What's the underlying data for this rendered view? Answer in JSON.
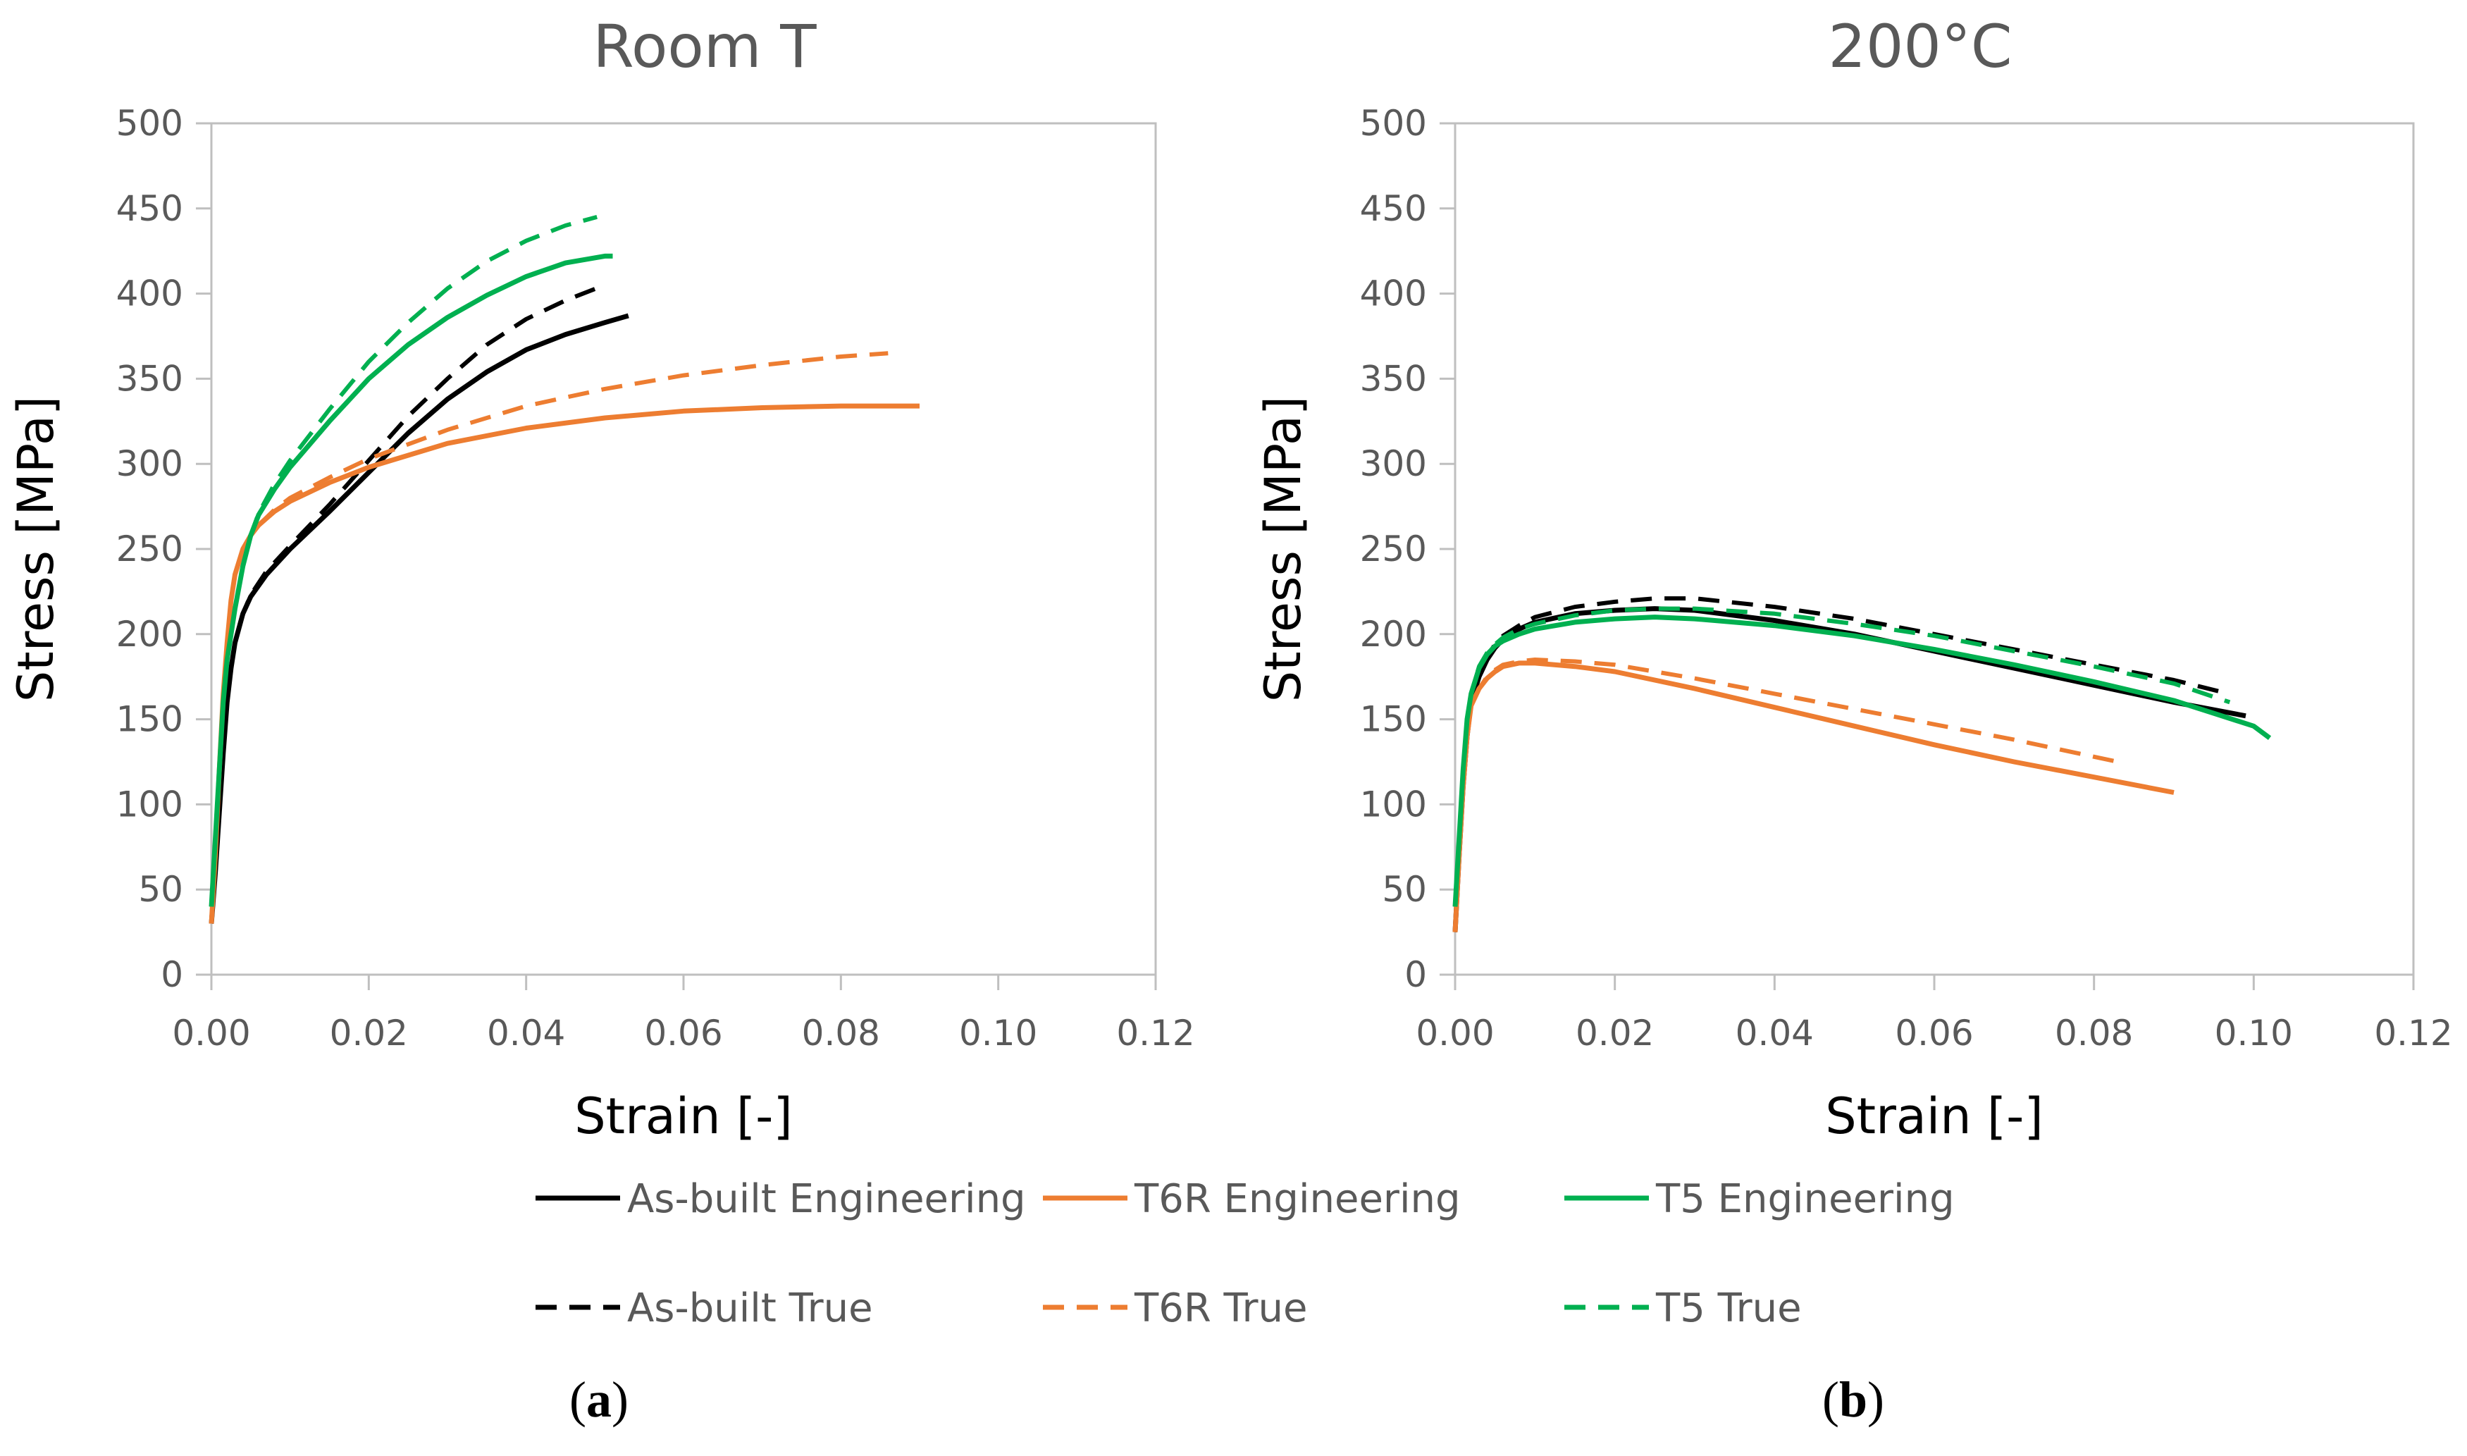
{
  "chart_data": [
    {
      "type": "line",
      "title": "Room T",
      "xlabel": "Strain [-]",
      "ylabel": "Stress [MPa]",
      "xlim": [
        0,
        0.12
      ],
      "ylim": [
        0,
        500
      ],
      "xticks": [
        0,
        0.02,
        0.04,
        0.06,
        0.08,
        0.1,
        0.12
      ],
      "xtick_labels": [
        "0.00",
        "0.02",
        "0.04",
        "0.06",
        "0.08",
        "0.10",
        "0.12"
      ],
      "yticks": [
        0,
        50,
        100,
        150,
        200,
        250,
        300,
        350,
        400,
        450,
        500
      ],
      "ytick_labels": [
        "0",
        "50",
        "100",
        "150",
        "200",
        "250",
        "300",
        "350",
        "400",
        "450",
        "500"
      ],
      "caption_letter": "a",
      "series": [
        {
          "key": "asbuilt_eng",
          "x": [
            0,
            0.0005,
            0.001,
            0.0015,
            0.002,
            0.0025,
            0.003,
            0.004,
            0.005,
            0.007,
            0.01,
            0.015,
            0.02,
            0.025,
            0.03,
            0.035,
            0.04,
            0.045,
            0.05,
            0.053
          ],
          "y": [
            30,
            60,
            95,
            130,
            160,
            180,
            195,
            212,
            222,
            235,
            250,
            272,
            295,
            318,
            338,
            354,
            367,
            376,
            383,
            387
          ]
        },
        {
          "key": "asbuilt_true",
          "x": [
            0,
            0.0005,
            0.001,
            0.0015,
            0.002,
            0.0025,
            0.003,
            0.004,
            0.005,
            0.007,
            0.01,
            0.015,
            0.02,
            0.025,
            0.03,
            0.035,
            0.04,
            0.045,
            0.05
          ],
          "y": [
            30,
            60,
            95,
            130,
            160,
            180,
            195,
            212,
            223,
            237,
            252,
            276,
            302,
            328,
            350,
            370,
            385,
            396,
            405
          ]
        },
        {
          "key": "t6r_eng",
          "x": [
            0,
            0.0005,
            0.001,
            0.0015,
            0.002,
            0.0025,
            0.003,
            0.004,
            0.005,
            0.006,
            0.008,
            0.01,
            0.015,
            0.02,
            0.03,
            0.04,
            0.05,
            0.06,
            0.07,
            0.08,
            0.09
          ],
          "y": [
            30,
            70,
            120,
            165,
            195,
            220,
            235,
            250,
            258,
            264,
            272,
            278,
            289,
            298,
            312,
            321,
            327,
            331,
            333,
            334,
            334
          ]
        },
        {
          "key": "t6r_true",
          "x": [
            0,
            0.0005,
            0.001,
            0.0015,
            0.002,
            0.0025,
            0.003,
            0.004,
            0.005,
            0.006,
            0.008,
            0.01,
            0.015,
            0.02,
            0.03,
            0.04,
            0.05,
            0.06,
            0.07,
            0.08,
            0.086
          ],
          "y": [
            30,
            70,
            120,
            165,
            195,
            220,
            235,
            250,
            258,
            264,
            273,
            280,
            292,
            303,
            320,
            334,
            344,
            352,
            358,
            363,
            365
          ]
        },
        {
          "key": "t5_eng",
          "x": [
            0,
            0.0005,
            0.001,
            0.0015,
            0.002,
            0.003,
            0.004,
            0.005,
            0.006,
            0.008,
            0.01,
            0.015,
            0.02,
            0.025,
            0.03,
            0.035,
            0.04,
            0.045,
            0.05,
            0.051
          ],
          "y": [
            40,
            80,
            120,
            160,
            185,
            215,
            240,
            258,
            270,
            285,
            298,
            325,
            350,
            370,
            386,
            399,
            410,
            418,
            422,
            422
          ]
        },
        {
          "key": "t5_true",
          "x": [
            0,
            0.0005,
            0.001,
            0.0015,
            0.002,
            0.003,
            0.004,
            0.005,
            0.006,
            0.008,
            0.01,
            0.015,
            0.02,
            0.025,
            0.03,
            0.035,
            0.04,
            0.045,
            0.049
          ],
          "y": [
            40,
            80,
            120,
            160,
            185,
            215,
            240,
            258,
            271,
            288,
            302,
            332,
            360,
            383,
            403,
            419,
            431,
            440,
            445
          ]
        }
      ]
    },
    {
      "type": "line",
      "title": "200°C",
      "xlabel": "Strain [-]",
      "ylabel": "Stress [MPa]",
      "xlim": [
        0,
        0.12
      ],
      "ylim": [
        0,
        500
      ],
      "xticks": [
        0,
        0.02,
        0.04,
        0.06,
        0.08,
        0.1,
        0.12
      ],
      "xtick_labels": [
        "0.00",
        "0.02",
        "0.04",
        "0.06",
        "0.08",
        "0.10",
        "0.12"
      ],
      "yticks": [
        0,
        50,
        100,
        150,
        200,
        250,
        300,
        350,
        400,
        450,
        500
      ],
      "ytick_labels": [
        "0",
        "50",
        "100",
        "150",
        "200",
        "250",
        "300",
        "350",
        "400",
        "450",
        "500"
      ],
      "caption_letter": "b",
      "series": [
        {
          "key": "asbuilt_eng",
          "x": [
            0,
            0.0005,
            0.001,
            0.0015,
            0.002,
            0.003,
            0.004,
            0.005,
            0.006,
            0.008,
            0.01,
            0.015,
            0.02,
            0.025,
            0.03,
            0.04,
            0.05,
            0.06,
            0.07,
            0.08,
            0.09,
            0.099
          ],
          "y": [
            25,
            70,
            110,
            140,
            160,
            175,
            185,
            192,
            197,
            203,
            207,
            212,
            214,
            215,
            214,
            208,
            200,
            190,
            180,
            170,
            160,
            152
          ]
        },
        {
          "key": "asbuilt_true",
          "x": [
            0,
            0.0005,
            0.001,
            0.0015,
            0.002,
            0.003,
            0.004,
            0.005,
            0.006,
            0.008,
            0.01,
            0.015,
            0.02,
            0.025,
            0.03,
            0.04,
            0.05,
            0.06,
            0.07,
            0.08,
            0.09,
            0.096
          ],
          "y": [
            25,
            70,
            110,
            140,
            160,
            176,
            187,
            194,
            199,
            205,
            210,
            216,
            219,
            221,
            221,
            216,
            209,
            200,
            191,
            182,
            173,
            166
          ]
        },
        {
          "key": "t6r_eng",
          "x": [
            0,
            0.0005,
            0.001,
            0.0015,
            0.002,
            0.003,
            0.004,
            0.005,
            0.006,
            0.008,
            0.01,
            0.015,
            0.02,
            0.03,
            0.04,
            0.05,
            0.06,
            0.07,
            0.08,
            0.09
          ],
          "y": [
            25,
            70,
            110,
            140,
            158,
            168,
            174,
            178,
            181,
            183,
            183,
            181,
            178,
            168,
            157,
            146,
            135,
            125,
            116,
            107
          ]
        },
        {
          "key": "t6r_true",
          "x": [
            0,
            0.0005,
            0.001,
            0.0015,
            0.002,
            0.003,
            0.004,
            0.005,
            0.006,
            0.008,
            0.01,
            0.015,
            0.02,
            0.03,
            0.04,
            0.05,
            0.06,
            0.07,
            0.08,
            0.084
          ],
          "y": [
            25,
            70,
            110,
            140,
            158,
            168,
            175,
            179,
            182,
            184,
            185,
            184,
            182,
            174,
            165,
            156,
            147,
            138,
            128,
            124
          ]
        },
        {
          "key": "t5_eng",
          "x": [
            0,
            0.0005,
            0.001,
            0.0015,
            0.002,
            0.003,
            0.004,
            0.005,
            0.006,
            0.008,
            0.01,
            0.015,
            0.02,
            0.025,
            0.03,
            0.04,
            0.05,
            0.06,
            0.07,
            0.08,
            0.09,
            0.1,
            0.102
          ],
          "y": [
            40,
            80,
            120,
            150,
            165,
            180,
            188,
            193,
            196,
            200,
            203,
            207,
            209,
            210,
            209,
            205,
            199,
            191,
            182,
            172,
            161,
            146,
            139
          ]
        },
        {
          "key": "t5_true",
          "x": [
            0,
            0.0005,
            0.001,
            0.0015,
            0.002,
            0.003,
            0.004,
            0.005,
            0.006,
            0.008,
            0.01,
            0.015,
            0.02,
            0.025,
            0.03,
            0.04,
            0.05,
            0.06,
            0.07,
            0.08,
            0.09,
            0.097
          ],
          "y": [
            40,
            80,
            120,
            150,
            165,
            181,
            189,
            194,
            198,
            203,
            206,
            211,
            214,
            215,
            215,
            212,
            206,
            199,
            190,
            181,
            171,
            160
          ]
        }
      ]
    }
  ],
  "series_styles": {
    "asbuilt_eng": {
      "name": "As-built Engineering",
      "color": "#000000",
      "dashed": false
    },
    "asbuilt_true": {
      "name": "As-built True",
      "color": "#000000",
      "dashed": true
    },
    "t6r_eng": {
      "name": "T6R Engineering",
      "color": "#ED7D31",
      "dashed": false
    },
    "t6r_true": {
      "name": "T6R True",
      "color": "#ED7D31",
      "dashed": true
    },
    "t5_eng": {
      "name": "T5 Engineering",
      "color": "#00B050",
      "dashed": false
    },
    "t5_true": {
      "name": "T5 True",
      "color": "#00B050",
      "dashed": true
    }
  },
  "legend": [
    {
      "key": "asbuilt_eng",
      "label": "As-built Engineering"
    },
    {
      "key": "t6r_eng",
      "label": "T6R Engineering"
    },
    {
      "key": "t5_eng",
      "label": "T5 Engineering"
    },
    {
      "key": "asbuilt_true",
      "label": "As-built True"
    },
    {
      "key": "t6r_true",
      "label": "T6R True"
    },
    {
      "key": "t5_true",
      "label": "T5 True"
    }
  ],
  "colors": {
    "axis": "#BFBFBF",
    "tick_text": "#595959",
    "label_text": "#000000"
  }
}
